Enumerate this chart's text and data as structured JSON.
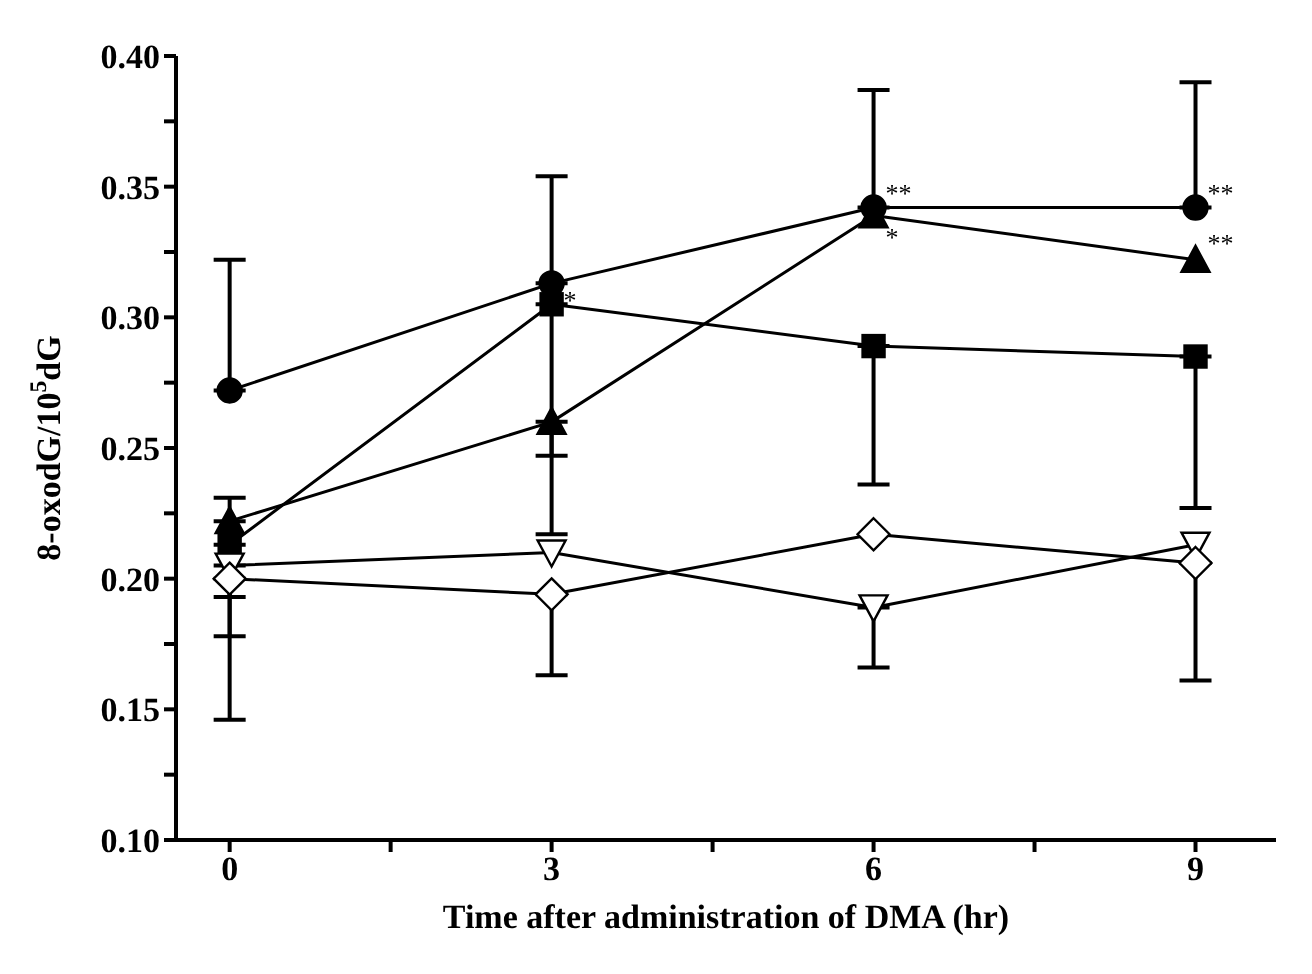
{
  "chart_data": {
    "type": "line",
    "xlabel": "Time after administration of DMA (hr)",
    "ylabel": "8-oxodG/10$^{5}$dG",
    "x": [
      0,
      3,
      6,
      9
    ],
    "xlim": [
      -0.5,
      9.75
    ],
    "xticks": [
      0,
      {
        "value": 1.5,
        "label": null
      },
      3,
      {
        "value": 4.5,
        "label": null
      },
      6,
      {
        "value": 7.5,
        "label": null
      },
      9
    ],
    "ylim": [
      0.1,
      0.4
    ],
    "yticks": [
      {
        "value": 0.1,
        "label": "0.10"
      },
      {
        "value": 0.125,
        "label": null
      },
      0.15,
      {
        "value": 0.175,
        "label": null
      },
      {
        "value": 0.2,
        "label": "0.20"
      },
      {
        "value": 0.225,
        "label": null
      },
      0.25,
      {
        "value": 0.275,
        "label": null
      },
      {
        "value": 0.3,
        "label": "0.30"
      },
      {
        "value": 0.325,
        "label": null
      },
      0.35,
      {
        "value": 0.375,
        "label": null
      },
      {
        "value": 0.4,
        "label": "0.40"
      }
    ],
    "grid": false,
    "legend": false,
    "line_style": "solid",
    "series": [
      {
        "color": "#000000",
        "marker": "circle",
        "values": [
          0.272,
          0.313,
          0.342,
          0.342
        ],
        "errors": [
          [
            0.272,
            0.322
          ],
          [
            0.313,
            0.354
          ],
          [
            0.342,
            0.387
          ],
          [
            0.342,
            0.39
          ]
        ]
      },
      {
        "color": "#000000",
        "marker": "square",
        "values": [
          0.213,
          0.305,
          0.289,
          0.285
        ],
        "errors": [
          [
            0.146,
            0.213
          ],
          [
            0.217,
            0.305
          ],
          [
            0.236,
            0.289
          ],
          [
            0.227,
            0.285
          ]
        ]
      },
      {
        "color": "#000000",
        "marker": "triangle",
        "values": [
          0.222,
          0.26,
          0.339,
          0.322
        ],
        "errors": [
          [
            0.222,
            0.231
          ],
          [
            0.247,
            0.26
          ],
          null,
          null
        ]
      },
      {
        "color": "#000000",
        "marker": "triangle-down-open",
        "values": [
          0.205,
          0.21,
          0.189,
          0.213
        ],
        "errors": [
          [
            0.193,
            0.205
          ],
          null,
          [
            0.166,
            0.189
          ],
          null
        ]
      },
      {
        "color": "#000000",
        "marker": "diamond-open",
        "values": [
          0.2,
          0.194,
          0.217,
          0.206
        ],
        "errors": [
          [
            0.178,
            0.2
          ],
          [
            0.163,
            0.194
          ],
          null,
          [
            0.161,
            0.206
          ]
        ]
      }
    ],
    "annotations": [
      {
        "text": "*",
        "x": 3,
        "y": 0.307
      },
      {
        "text": "**",
        "x": 6,
        "y": 0.348
      },
      {
        "text": "*",
        "x": 6,
        "y": 0.331
      },
      {
        "text": "**",
        "x": 9,
        "y": 0.348
      },
      {
        "text": "**",
        "x": 9,
        "y": 0.329
      }
    ]
  }
}
